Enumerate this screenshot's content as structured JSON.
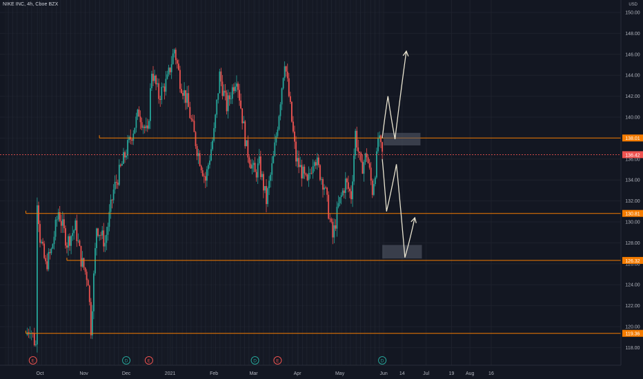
{
  "header": {
    "symbol_title": "NIKE INC, 4h, Cboe BZX",
    "currency": "USD"
  },
  "colors": {
    "background": "#131722",
    "grid": "#1e222d",
    "axis_text": "#b2b5be",
    "up": "#26a69a",
    "down": "#ef5350",
    "level_line": "#f57c00",
    "level_label_bg": "#f57c00",
    "last_price_line": "#ef5350",
    "last_price_bg": "#ef5350",
    "arrow": "#e9e4d0",
    "zone": "#5a5f6e"
  },
  "chart_data": {
    "type": "candlestick",
    "title": "NIKE INC, 4h, Cboe BZX",
    "y_axis": {
      "ticks": [
        118,
        120,
        122,
        124,
        126,
        128,
        130,
        132,
        134,
        136,
        138,
        140,
        142,
        144,
        146,
        148,
        150
      ],
      "ylim": [
        117,
        151
      ],
      "unit": "USD"
    },
    "x_axis": {
      "ticks": [
        "Oct",
        "Nov",
        "Dec",
        "2021",
        "Feb",
        "Mar",
        "Apr",
        "May",
        "Jun",
        "14",
        "Jul",
        "19",
        "Aug",
        "16"
      ]
    },
    "price_path": [
      [
        "Sep 21",
        119.2
      ],
      [
        "Sep 24",
        120.0
      ],
      [
        "Sep 28",
        118.2
      ],
      [
        "Sep 29",
        132.3
      ],
      [
        "Oct 1",
        128.5
      ],
      [
        "Oct 5",
        125.8
      ],
      [
        "Oct 9",
        127.2
      ],
      [
        "Oct 14",
        131.0
      ],
      [
        "Oct 20",
        128.0
      ],
      [
        "Oct 26",
        129.5
      ],
      [
        "Oct 30",
        126.4
      ],
      [
        "Nov 4",
        124.5
      ],
      [
        "Nov 6",
        119.8
      ],
      [
        "Nov 10",
        129.6
      ],
      [
        "Nov 16",
        128.0
      ],
      [
        "Nov 22",
        133.0
      ],
      [
        "Nov 28",
        135.5
      ],
      [
        "Dec 4",
        138.0
      ],
      [
        "Dec 10",
        140.5
      ],
      [
        "Dec 16",
        138.2
      ],
      [
        "Dec 19",
        144.5
      ],
      [
        "Dec 24",
        142.0
      ],
      [
        "Dec 30",
        143.5
      ],
      [
        "Jan 4",
        146.5
      ],
      [
        "Jan 8",
        143.5
      ],
      [
        "Jan 13",
        141.5
      ],
      [
        "Jan 20",
        137.0
      ],
      [
        "Jan 26",
        134.0
      ],
      [
        "Feb 1",
        138.5
      ],
      [
        "Feb 5",
        144.0
      ],
      [
        "Feb 10",
        141.0
      ],
      [
        "Feb 17",
        144.0
      ],
      [
        "Feb 24",
        137.0
      ],
      [
        "Mar 2",
        134.5
      ],
      [
        "Mar 5",
        135.5
      ],
      [
        "Mar 10",
        132.0
      ],
      [
        "Mar 15",
        136.0
      ],
      [
        "Mar 19",
        140.5
      ],
      [
        "Mar 23",
        145.5
      ],
      [
        "Mar 26",
        142.0
      ],
      [
        "Mar 31",
        136.0
      ],
      [
        "Apr 5",
        134.5
      ],
      [
        "Apr 8",
        133.5
      ],
      [
        "Apr 13",
        136.5
      ],
      [
        "Apr 16",
        135.0
      ],
      [
        "Apr 20",
        133.5
      ],
      [
        "Apr 23",
        131.0
      ],
      [
        "Apr 26",
        128.5
      ],
      [
        "Apr 30",
        131.5
      ],
      [
        "May 5",
        133.8
      ],
      [
        "May 9",
        132.5
      ],
      [
        "May 12",
        138.5
      ],
      [
        "May 16",
        135.0
      ],
      [
        "May 20",
        136.5
      ],
      [
        "May 24",
        133.0
      ],
      [
        "May 27",
        136.0
      ],
      [
        "May 28",
        138.0
      ],
      [
        "May 31",
        136.42
      ]
    ],
    "levels": [
      {
        "price": 138.01,
        "label": "138.01",
        "from": "Nov 12"
      },
      {
        "price": 130.81,
        "label": "130.81",
        "from": "Sep 21"
      },
      {
        "price": 126.32,
        "label": "126.32",
        "from": "Oct 20"
      },
      {
        "price": 119.36,
        "label": "119.36",
        "from": "Sep 21"
      }
    ],
    "last_price": {
      "price": 136.42,
      "label": "136.42"
    },
    "zones": [
      {
        "from": "Jun 1",
        "to": "Jun 27",
        "top": 138.5,
        "bottom": 137.3
      },
      {
        "from": "May 31",
        "to": "Jun 28",
        "top": 127.8,
        "bottom": 126.5
      }
    ],
    "scenario_paths": [
      {
        "name": "bullish",
        "points": [
          [
            "May 31",
            138.0
          ],
          [
            "Jun 4",
            142.0
          ],
          [
            "Jun 9",
            137.9
          ],
          [
            "Jun 17",
            146.3
          ]
        ],
        "arrow": true
      },
      {
        "name": "bearish",
        "points": [
          [
            "May 31",
            136.0
          ],
          [
            "Jun 3",
            131.0
          ],
          [
            "Jun 10",
            135.5
          ],
          [
            "Jun 16",
            126.6
          ],
          [
            "Jun 23",
            130.4
          ]
        ],
        "arrow": true
      }
    ],
    "events": [
      {
        "date": "Sep 26",
        "letter": "E",
        "kind": "earnings"
      },
      {
        "date": "Dec 1",
        "letter": "D",
        "kind": "dividend"
      },
      {
        "date": "Dec 17",
        "letter": "E",
        "kind": "earnings"
      },
      {
        "date": "Mar 2",
        "letter": "D",
        "kind": "dividend"
      },
      {
        "date": "Mar 18",
        "letter": "E",
        "kind": "earnings"
      },
      {
        "date": "May 31",
        "letter": "D",
        "kind": "dividend"
      }
    ]
  }
}
